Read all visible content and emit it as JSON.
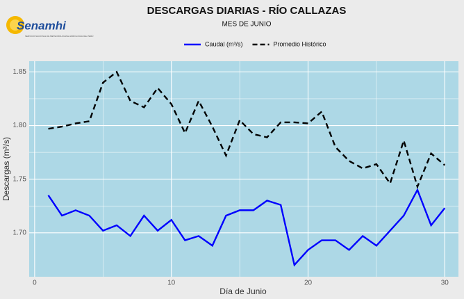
{
  "logo": {
    "name": "Senamhi",
    "tagline": "SERVICIO NACIONAL DE METEOROLOGÍA E HIDROLOGÍA DEL PERÚ"
  },
  "chart_data": {
    "type": "line",
    "title": "DESCARGAS DIARIAS - RÍO CALLAZAS",
    "subtitle": "MES DE JUNIO",
    "x_label": "Día de Junio",
    "y_label": "Descargas (m³/s)",
    "x": [
      1,
      2,
      3,
      4,
      5,
      6,
      7,
      8,
      9,
      10,
      11,
      12,
      13,
      14,
      15,
      16,
      17,
      18,
      19,
      20,
      21,
      22,
      23,
      24,
      25,
      26,
      27,
      28,
      29,
      30
    ],
    "series": [
      {
        "name": "Caudal (m³/s)",
        "color": "#0000ff",
        "dash": "solid",
        "values": [
          1.735,
          1.716,
          1.721,
          1.716,
          1.702,
          1.707,
          1.697,
          1.716,
          1.702,
          1.712,
          1.693,
          1.697,
          1.688,
          1.716,
          1.721,
          1.721,
          1.73,
          1.726,
          1.67,
          1.684,
          1.693,
          1.693,
          1.684,
          1.697,
          1.688,
          1.702,
          1.716,
          1.74,
          1.707,
          1.723
        ]
      },
      {
        "name": "Promedio Histórico",
        "color": "#000000",
        "dash": "dashed",
        "values": [
          1.797,
          1.799,
          1.802,
          1.804,
          1.84,
          1.85,
          1.823,
          1.817,
          1.835,
          1.82,
          1.793,
          1.823,
          1.799,
          1.772,
          1.805,
          1.792,
          1.789,
          1.803,
          1.803,
          1.802,
          1.813,
          1.78,
          1.767,
          1.76,
          1.764,
          1.746,
          1.786,
          1.743,
          1.774,
          1.763
        ]
      }
    ],
    "xlim": [
      -0.4,
      31
    ],
    "xticks": [
      0,
      10,
      20,
      30
    ],
    "ylim": [
      1.659,
      1.86
    ],
    "yticks": [
      {
        "value": 1.7,
        "label": "1.70"
      },
      {
        "value": 1.75,
        "label": "1.75"
      },
      {
        "value": 1.8,
        "label": "1.80"
      },
      {
        "value": 1.85,
        "label": "1.85"
      }
    ],
    "grid": true,
    "minor_grid": true,
    "background": "#add8e6",
    "legend": "top"
  }
}
